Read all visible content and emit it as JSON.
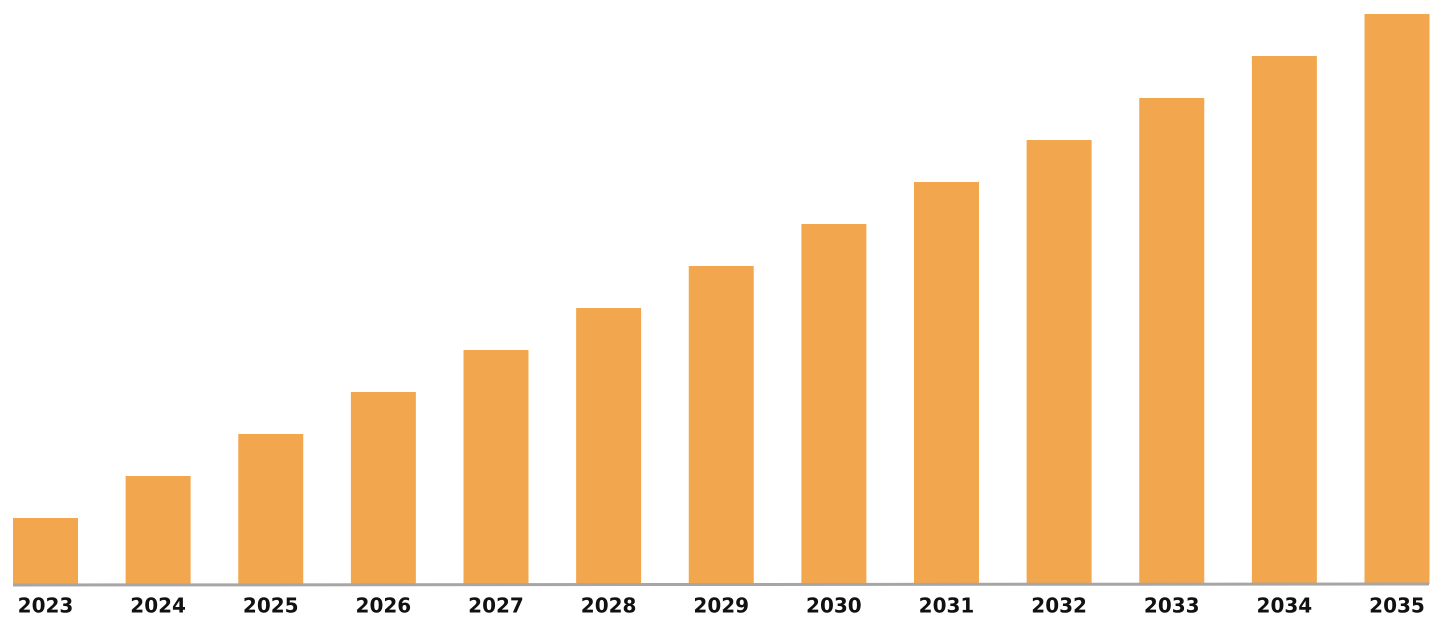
{
  "chart_data": {
    "type": "bar",
    "categories": [
      "2023",
      "2024",
      "2025",
      "2026",
      "2027",
      "2028",
      "2029",
      "2030",
      "2031",
      "2032",
      "2033",
      "2034",
      "2035"
    ],
    "values": [
      66,
      108,
      150,
      192,
      234,
      276,
      318,
      360,
      402,
      444,
      486,
      528,
      570
    ],
    "color": "#f2a74f"
  }
}
